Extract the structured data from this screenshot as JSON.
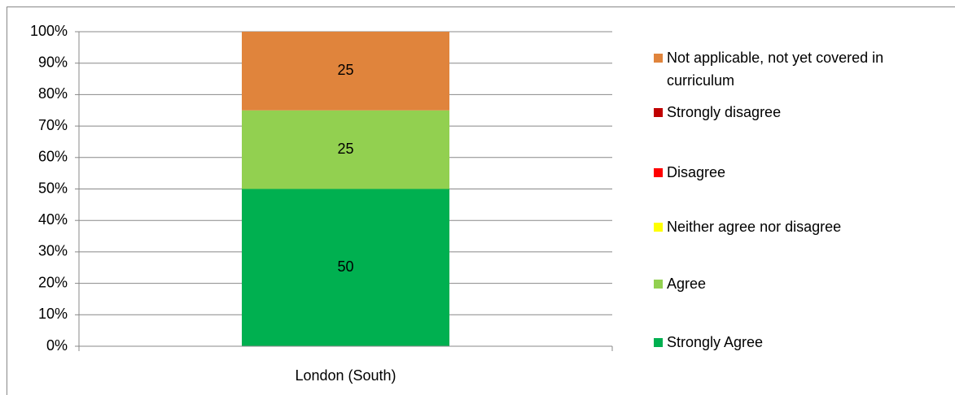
{
  "chart_data": {
    "type": "stacked_bar",
    "categories": [
      "London (South)"
    ],
    "series": [
      {
        "name": "Strongly Agree",
        "color": "#00b050",
        "values": [
          50
        ]
      },
      {
        "name": "Agree",
        "color": "#92d050",
        "values": [
          25
        ]
      },
      {
        "name": "Neither agree nor disagree",
        "color": "#ffff00",
        "values": [
          0
        ]
      },
      {
        "name": "Disagree",
        "color": "#ff0000",
        "values": [
          0
        ]
      },
      {
        "name": "Strongly disagree",
        "color": "#c00000",
        "values": [
          0
        ]
      },
      {
        "name": "Not applicable, not yet covered in curriculum",
        "color": "#e0843c",
        "values": [
          25
        ]
      }
    ],
    "ylim": [
      0,
      100
    ],
    "yticks": [
      {
        "value": 0,
        "label": "0%"
      },
      {
        "value": 10,
        "label": "10%"
      },
      {
        "value": 20,
        "label": "20%"
      },
      {
        "value": 30,
        "label": "30%"
      },
      {
        "value": 40,
        "label": "40%"
      },
      {
        "value": 50,
        "label": "50%"
      },
      {
        "value": 60,
        "label": "60%"
      },
      {
        "value": 70,
        "label": "70%"
      },
      {
        "value": 80,
        "label": "80%"
      },
      {
        "value": 90,
        "label": "90%"
      },
      {
        "value": 100,
        "label": "100%"
      }
    ],
    "grid": true,
    "legend": "right"
  }
}
